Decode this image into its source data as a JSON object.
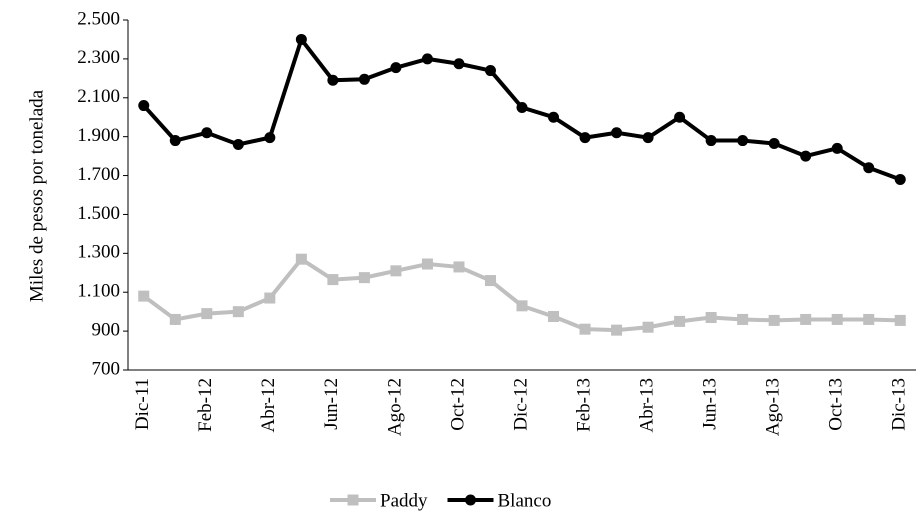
{
  "chart_data": {
    "type": "line",
    "y_label": "Miles de pesos por tonelada",
    "categories": [
      "Dic-11",
      null,
      "Feb-12",
      null,
      "Abr-12",
      null,
      "Jun-12",
      null,
      "Ago-12",
      null,
      "Oct-12",
      null,
      "Dic-12",
      null,
      "Feb-13",
      null,
      "Abr-13",
      null,
      "Jun-13",
      null,
      "Ago-13",
      null,
      "Oct-13",
      null,
      "Dic-13"
    ],
    "series": [
      {
        "name": "Paddy",
        "color": "#bfbfbf",
        "marker": "square",
        "values": [
          1080,
          960,
          990,
          1000,
          1070,
          1270,
          1165,
          1175,
          1210,
          1245,
          1230,
          1160,
          1030,
          975,
          910,
          905,
          920,
          950,
          970,
          960,
          955,
          960,
          960,
          960,
          955
        ]
      },
      {
        "name": "Blanco",
        "color": "#000000",
        "marker": "circle",
        "values": [
          2060,
          1880,
          1920,
          1860,
          1895,
          2400,
          2190,
          2195,
          2255,
          2300,
          2275,
          2240,
          2050,
          2000,
          1895,
          1920,
          1895,
          2000,
          1880,
          1880,
          1865,
          1800,
          1840,
          1740,
          1680
        ]
      }
    ],
    "ylim": [
      700,
      2500
    ],
    "yticks": [
      700,
      900,
      {
        "value": 1100,
        "label": "1.100"
      },
      {
        "value": 1300,
        "label": "1.300"
      },
      {
        "value": 1500,
        "label": "1.500"
      },
      {
        "value": 1700,
        "label": "1.700"
      },
      {
        "value": 1900,
        "label": "1.900"
      },
      {
        "value": 2100,
        "label": "2.100"
      },
      {
        "value": 2300,
        "label": "2.300"
      },
      {
        "value": 2500,
        "label": "2.500"
      }
    ],
    "grid": false,
    "legend": "bottom"
  }
}
